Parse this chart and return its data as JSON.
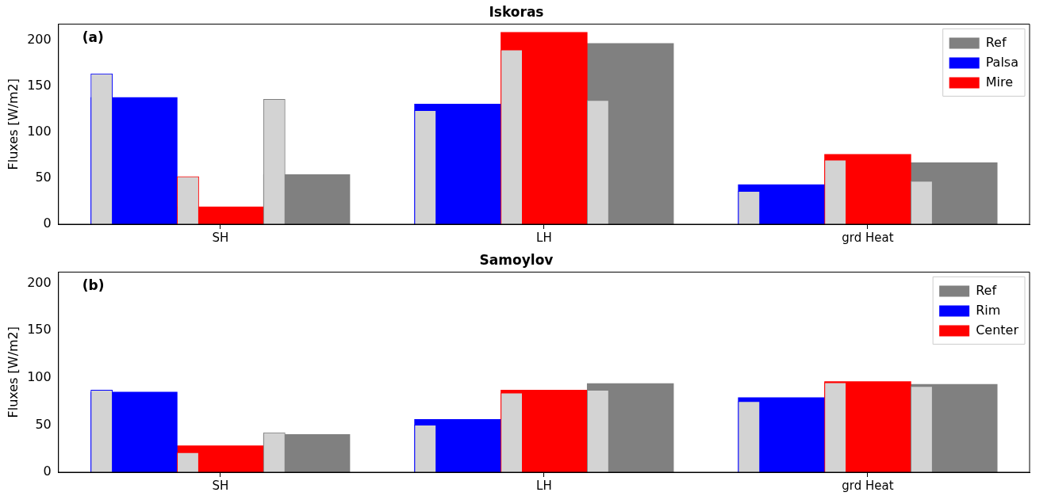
{
  "chart_data": [
    {
      "type": "bar",
      "title": "Iskoras",
      "ylabel": "Fluxes [W/m2]",
      "categories": [
        "SH",
        "LH",
        "grd Heat"
      ],
      "ylim": [
        0,
        218
      ],
      "yticks": [
        0,
        50,
        100,
        150,
        200
      ],
      "legend": "top right",
      "annotations": [
        "(a)"
      ],
      "series": [
        {
          "name": "Palsa",
          "color": "#0000ff",
          "values": [
            138,
            131,
            43
          ]
        },
        {
          "name": "Mire",
          "color": "#ff0000",
          "values": [
            19,
            209,
            76
          ]
        },
        {
          "name": "Ref",
          "color": "#808080",
          "values": [
            54,
            197,
            67
          ]
        },
        {
          "color": "#d3d3d3",
          "values": [
            164,
            124,
            36
          ]
        },
        {
          "color": "#d3d3d3",
          "values": [
            52,
            190,
            70
          ]
        },
        {
          "color": "#d3d3d3",
          "values": [
            136,
            135,
            47
          ]
        }
      ]
    },
    {
      "type": "bar",
      "title": "Samoylov",
      "ylabel": "Fluxes [W/m2]",
      "categories": [
        "SH",
        "LH",
        "grd Heat"
      ],
      "ylim": [
        0,
        212
      ],
      "yticks": [
        0,
        50,
        100,
        150,
        200
      ],
      "legend": "top right",
      "annotations": [
        "(b)"
      ],
      "series": [
        {
          "name": "Rim",
          "color": "#0000ff",
          "values": [
            85,
            56,
            79
          ]
        },
        {
          "name": "Center",
          "color": "#ff0000",
          "values": [
            28,
            87,
            96
          ]
        },
        {
          "name": "Ref",
          "color": "#808080",
          "values": [
            40,
            94,
            93
          ]
        },
        {
          "color": "#d3d3d3",
          "values": [
            87,
            50,
            75
          ]
        },
        {
          "color": "#d3d3d3",
          "values": [
            21,
            84,
            95
          ]
        },
        {
          "color": "#d3d3d3",
          "values": [
            42,
            87,
            91
          ]
        }
      ]
    }
  ]
}
